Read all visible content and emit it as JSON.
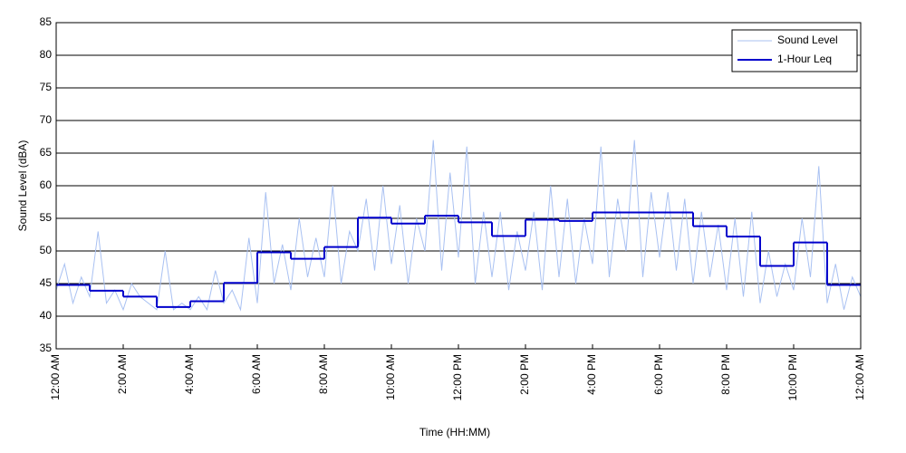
{
  "chart_data": {
    "type": "line",
    "xlabel": "Time (HH:MM)",
    "ylabel": "Sound Level (dBA)",
    "xlim": [
      0,
      24
    ],
    "ylim": [
      35,
      85
    ],
    "xticks": [
      {
        "value": 0,
        "label": "12:00 AM"
      },
      {
        "value": 2,
        "label": "2:00 AM"
      },
      {
        "value": 4,
        "label": "4:00 AM"
      },
      {
        "value": 6,
        "label": "6:00 AM"
      },
      {
        "value": 8,
        "label": "8:00 AM"
      },
      {
        "value": 10,
        "label": "10:00 AM"
      },
      {
        "value": 12,
        "label": "12:00 PM"
      },
      {
        "value": 14,
        "label": "2:00 PM"
      },
      {
        "value": 16,
        "label": "4:00 PM"
      },
      {
        "value": 18,
        "label": "6:00 PM"
      },
      {
        "value": 20,
        "label": "8:00 PM"
      },
      {
        "value": 22,
        "label": "10:00 PM"
      },
      {
        "value": 24,
        "label": "12:00 AM"
      }
    ],
    "yticks": [
      35,
      40,
      45,
      50,
      55,
      60,
      65,
      70,
      75,
      80,
      85
    ],
    "grid": true,
    "legend": "upper right",
    "series": [
      {
        "name": "Sound Level",
        "color": "#a9c1f2",
        "drawstyle": "default",
        "x": [
          0,
          0.25,
          0.5,
          0.75,
          1,
          1.25,
          1.5,
          1.75,
          2,
          2.25,
          2.5,
          2.75,
          3,
          3.25,
          3.5,
          3.75,
          4,
          4.25,
          4.5,
          4.75,
          5,
          5.25,
          5.5,
          5.75,
          6,
          6.25,
          6.5,
          6.75,
          7,
          7.25,
          7.5,
          7.75,
          8,
          8.25,
          8.5,
          8.75,
          9,
          9.25,
          9.5,
          9.75,
          10,
          10.25,
          10.5,
          10.75,
          11,
          11.25,
          11.5,
          11.75,
          12,
          12.25,
          12.5,
          12.75,
          13,
          13.25,
          13.5,
          13.75,
          14,
          14.25,
          14.5,
          14.75,
          15,
          15.25,
          15.5,
          15.75,
          16,
          16.25,
          16.5,
          16.75,
          17,
          17.25,
          17.5,
          17.75,
          18,
          18.25,
          18.5,
          18.75,
          19,
          19.25,
          19.5,
          19.75,
          20,
          20.25,
          20.5,
          20.75,
          21,
          21.25,
          21.5,
          21.75,
          22,
          22.25,
          22.5,
          22.75,
          23,
          23.25,
          23.5,
          23.75,
          24
        ],
        "values": [
          44,
          48,
          42,
          46,
          43,
          53,
          42,
          44,
          41,
          45,
          43,
          42,
          41,
          50,
          41,
          42,
          41,
          43,
          41,
          47,
          42,
          44,
          41,
          52,
          42,
          59,
          45,
          51,
          44,
          55,
          46,
          52,
          46,
          60,
          45,
          53,
          50,
          58,
          47,
          60,
          48,
          57,
          45,
          55,
          50,
          67,
          47,
          62,
          49,
          66,
          45,
          56,
          46,
          56,
          44,
          53,
          47,
          56,
          44,
          60,
          46,
          58,
          45,
          55,
          48,
          66,
          46,
          58,
          50,
          67,
          46,
          59,
          49,
          59,
          47,
          58,
          45,
          56,
          46,
          54,
          44,
          55,
          43,
          56,
          42,
          50,
          43,
          48,
          44,
          55,
          46,
          63,
          42,
          48,
          41,
          46,
          43
        ]
      },
      {
        "name": "1-Hour Leq",
        "color": "#0000cc",
        "drawstyle": "steps-post",
        "x": [
          0,
          1,
          2,
          3,
          4,
          5,
          6,
          7,
          8,
          9,
          10,
          11,
          12,
          13,
          14,
          15,
          16,
          17,
          18,
          19,
          20,
          21,
          22,
          23
        ],
        "values": [
          44.8,
          43.9,
          43.0,
          41.4,
          42.3,
          45.1,
          49.8,
          48.8,
          50.6,
          55.1,
          54.2,
          55.4,
          54.4,
          52.3,
          54.8,
          54.6,
          55.9,
          55.9,
          55.9,
          53.8,
          52.2,
          47.7,
          51.3,
          44.8
        ]
      }
    ]
  }
}
